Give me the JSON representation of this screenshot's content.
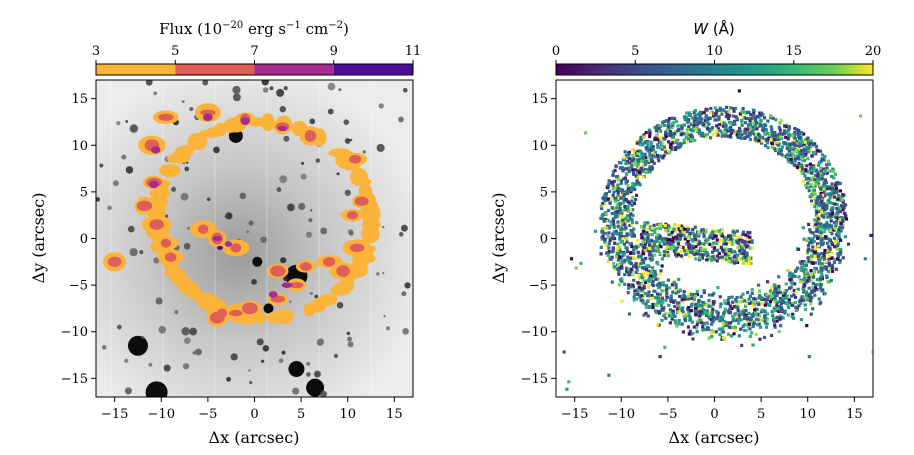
{
  "chart_data": [
    {
      "type": "heatmap",
      "title": "",
      "colorbar": {
        "label_main": "Flux (10",
        "label_exp1": "−20",
        "label_mid": " erg s",
        "label_exp2": "−1",
        "label_mid2": " cm",
        "label_exp3": "−2",
        "label_close": ")",
        "range": [
          3,
          11
        ],
        "ticks": [
          "3",
          "5",
          "7",
          "9",
          "11"
        ],
        "levels": [
          {
            "from": 3,
            "to": 5,
            "color": "#fbb33a"
          },
          {
            "from": 5,
            "to": 7,
            "color": "#de5f58"
          },
          {
            "from": 7,
            "to": 9,
            "color": "#a42c8e"
          },
          {
            "from": 9,
            "to": 11,
            "color": "#4a0e96"
          }
        ],
        "discrete": true
      },
      "xlabel": "Δx (arcsec)",
      "ylabel": "Δy (arcsec)",
      "xlim": [
        -17,
        17
      ],
      "ylim": [
        -17,
        17
      ],
      "xticks": [
        "−15",
        "−10",
        "−5",
        "0",
        "5",
        "10",
        "15"
      ],
      "yticks": [
        "15",
        "10",
        "5",
        "0",
        "−5",
        "−10",
        "−15"
      ],
      "background": "greyscale image",
      "ring_contour_points": [
        [
          -9.5,
          13.0
        ],
        [
          -5.0,
          13.5
        ],
        [
          -1.0,
          12.8
        ],
        [
          3.0,
          12.0
        ],
        [
          6.0,
          11.0
        ],
        [
          -11.0,
          10.0
        ],
        [
          -10.8,
          6.0
        ],
        [
          -11.8,
          3.5
        ],
        [
          -10.5,
          1.5
        ],
        [
          -9.5,
          -0.5
        ],
        [
          -9.0,
          -2.0
        ],
        [
          -5.5,
          1.0
        ],
        [
          -4.0,
          0.0
        ],
        [
          -2.0,
          -1.0
        ],
        [
          -15.0,
          -2.5
        ],
        [
          2.5,
          -3.5
        ],
        [
          5.5,
          -3.0
        ],
        [
          8.0,
          -2.5
        ],
        [
          9.5,
          -3.5
        ],
        [
          11.0,
          -1.0
        ],
        [
          10.5,
          2.5
        ],
        [
          4.5,
          -5.0
        ],
        [
          2.5,
          -6.5
        ],
        [
          -0.5,
          -7.5
        ],
        [
          -2.0,
          -8.0
        ],
        [
          -4.0,
          -8.5
        ],
        [
          -3.5,
          -8.0
        ],
        [
          11.5,
          4.0
        ],
        [
          10.8,
          8.5
        ]
      ]
    },
    {
      "type": "heatmap",
      "title": "",
      "colorbar": {
        "label_italic": "W",
        "label_rest": " (Å)",
        "range": [
          0,
          20
        ],
        "ticks": [
          "0",
          "5",
          "10",
          "15",
          "20"
        ],
        "colormap": "viridis",
        "discrete": false
      },
      "xlabel": "Δx (arcsec)",
      "ylabel": "Δy (arcsec)",
      "xlim": [
        -17,
        17
      ],
      "ylim": [
        -17,
        17
      ],
      "xticks": [
        "−15",
        "−10",
        "−5",
        "0",
        "5",
        "10",
        "15"
      ],
      "yticks": [
        "15",
        "10",
        "5",
        "0",
        "−5",
        "−10",
        "−15"
      ],
      "background": "white",
      "pixel_description": "scattered pixels along an elliptical ring"
    }
  ]
}
